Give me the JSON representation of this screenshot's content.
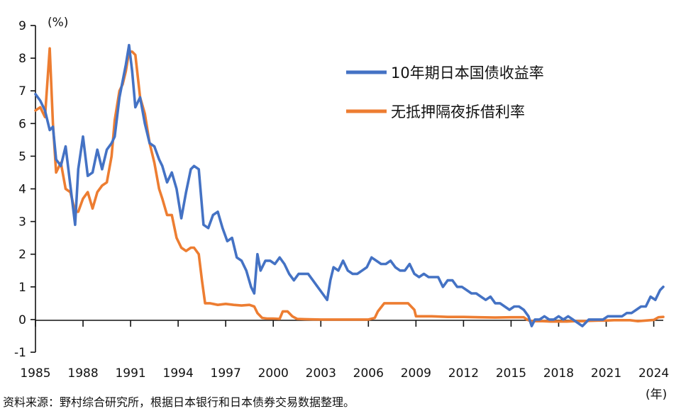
{
  "chart_data": {
    "type": "line",
    "y_unit": "(%)",
    "x_unit": "(年)",
    "xlim": [
      1985,
      2024.6
    ],
    "ylim": [
      -1,
      9
    ],
    "y_ticks": [
      "-1",
      "0",
      "1",
      "2",
      "3",
      "4",
      "5",
      "6",
      "7",
      "8",
      "9"
    ],
    "x_ticks": [
      "1985",
      "1988",
      "1991",
      "1994",
      "1997",
      "2000",
      "2003",
      "2006",
      "2009",
      "2012",
      "2015",
      "2018",
      "2021",
      "2024"
    ],
    "legend_position": "top-right",
    "grid": false,
    "series": [
      {
        "name": "10年期日本国债收益率",
        "color": "#4472c4",
        "x": [
          1985.0,
          1985.3,
          1985.6,
          1985.9,
          1986.1,
          1986.3,
          1986.6,
          1986.9,
          1987.2,
          1987.5,
          1987.7,
          1988.0,
          1988.3,
          1988.6,
          1988.9,
          1989.2,
          1989.5,
          1989.8,
          1990.0,
          1990.3,
          1990.5,
          1990.7,
          1990.9,
          1991.1,
          1991.3,
          1991.6,
          1991.9,
          1992.2,
          1992.5,
          1992.8,
          1993.0,
          1993.3,
          1993.6,
          1993.9,
          1994.2,
          1994.5,
          1994.8,
          1995.0,
          1995.3,
          1995.6,
          1995.9,
          1996.2,
          1996.5,
          1996.8,
          1997.1,
          1997.4,
          1997.7,
          1998.0,
          1998.3,
          1998.6,
          1998.8,
          1999.0,
          1999.2,
          1999.5,
          1999.8,
          2000.1,
          2000.4,
          2000.7,
          2001.0,
          2001.3,
          2001.6,
          2001.9,
          2002.2,
          2002.5,
          2002.8,
          2003.1,
          2003.4,
          2003.6,
          2003.8,
          2004.1,
          2004.4,
          2004.7,
          2005.0,
          2005.3,
          2005.6,
          2005.9,
          2006.2,
          2006.5,
          2006.8,
          2007.1,
          2007.4,
          2007.7,
          2008.0,
          2008.3,
          2008.6,
          2008.9,
          2009.2,
          2009.5,
          2009.8,
          2010.1,
          2010.4,
          2010.7,
          2011.0,
          2011.3,
          2011.6,
          2011.9,
          2012.2,
          2012.5,
          2012.8,
          2013.1,
          2013.4,
          2013.7,
          2014.0,
          2014.3,
          2014.6,
          2014.9,
          2015.2,
          2015.5,
          2015.8,
          2016.1,
          2016.3,
          2016.5,
          2016.8,
          2017.1,
          2017.4,
          2017.7,
          2018.0,
          2018.3,
          2018.6,
          2018.9,
          2019.2,
          2019.5,
          2019.7,
          2019.9,
          2020.2,
          2020.5,
          2020.8,
          2021.1,
          2021.4,
          2021.7,
          2022.0,
          2022.3,
          2022.6,
          2022.9,
          2023.2,
          2023.5,
          2023.8,
          2024.1,
          2024.4,
          2024.6
        ],
        "values": [
          6.9,
          6.7,
          6.4,
          5.8,
          5.9,
          4.9,
          4.7,
          5.3,
          4.1,
          2.9,
          4.6,
          5.6,
          4.4,
          4.5,
          5.2,
          4.6,
          5.2,
          5.4,
          5.6,
          6.8,
          7.3,
          7.8,
          8.4,
          7.6,
          6.5,
          6.8,
          6.0,
          5.4,
          5.3,
          4.9,
          4.7,
          4.2,
          4.5,
          4.0,
          3.1,
          3.9,
          4.6,
          4.7,
          4.6,
          2.9,
          2.8,
          3.2,
          3.3,
          2.8,
          2.4,
          2.5,
          1.9,
          1.8,
          1.5,
          1.0,
          0.8,
          2.0,
          1.5,
          1.8,
          1.8,
          1.7,
          1.9,
          1.7,
          1.4,
          1.2,
          1.4,
          1.4,
          1.4,
          1.2,
          1.0,
          0.8,
          0.6,
          1.2,
          1.6,
          1.5,
          1.8,
          1.5,
          1.4,
          1.4,
          1.5,
          1.6,
          1.9,
          1.8,
          1.7,
          1.7,
          1.8,
          1.6,
          1.5,
          1.5,
          1.7,
          1.4,
          1.3,
          1.4,
          1.3,
          1.3,
          1.3,
          1.0,
          1.2,
          1.2,
          1.0,
          1.0,
          0.9,
          0.8,
          0.8,
          0.7,
          0.6,
          0.7,
          0.5,
          0.5,
          0.4,
          0.3,
          0.4,
          0.4,
          0.3,
          0.1,
          -0.2,
          0.0,
          0.0,
          0.1,
          0.0,
          0.0,
          0.1,
          0.0,
          0.1,
          0.0,
          -0.1,
          -0.2,
          -0.1,
          0.0,
          0.0,
          0.0,
          0.0,
          0.1,
          0.1,
          0.1,
          0.1,
          0.2,
          0.2,
          0.3,
          0.4,
          0.4,
          0.7,
          0.6,
          0.9,
          1.0
        ]
      },
      {
        "name": "无抵押隔夜拆借利率",
        "color": "#ed7d31",
        "x": [
          1985.0,
          1985.3,
          1985.6,
          1985.9,
          1986.1,
          1986.3,
          1986.6,
          1986.9,
          1987.2,
          1987.5,
          1987.7,
          1988.0,
          1988.3,
          1988.6,
          1988.9,
          1989.2,
          1989.5,
          1989.8,
          1990.0,
          1990.3,
          1990.5,
          1990.7,
          1990.9,
          1991.1,
          1991.3,
          1991.6,
          1991.9,
          1992.2,
          1992.5,
          1992.8,
          1993.0,
          1993.3,
          1993.6,
          1993.9,
          1994.2,
          1994.5,
          1994.8,
          1995.0,
          1995.3,
          1995.5,
          1995.7,
          1996.0,
          1996.5,
          1997.0,
          1997.5,
          1998.0,
          1998.5,
          1998.8,
          1999.0,
          1999.3,
          1999.6,
          2000.0,
          2000.4,
          2000.6,
          2000.9,
          2001.2,
          2001.5,
          2002.0,
          2003.0,
          2004.0,
          2005.0,
          2006.0,
          2006.4,
          2006.6,
          2007.0,
          2007.3,
          2007.6,
          2008.0,
          2008.5,
          2008.9,
          2009.0,
          2009.5,
          2010.0,
          2011.0,
          2012.0,
          2013.0,
          2014.0,
          2015.0,
          2015.8,
          2016.0,
          2016.2,
          2016.5,
          2017.0,
          2017.5,
          2018.0,
          2018.5,
          2019.0,
          2019.5,
          2020.0,
          2020.5,
          2021.0,
          2021.5,
          2022.0,
          2022.5,
          2023.0,
          2023.5,
          2024.0,
          2024.3,
          2024.6
        ],
        "values": [
          6.4,
          6.5,
          6.2,
          8.3,
          6.0,
          4.5,
          4.8,
          4.0,
          3.9,
          3.3,
          3.3,
          3.7,
          3.9,
          3.4,
          3.9,
          4.1,
          4.2,
          5.0,
          6.1,
          7.0,
          7.2,
          7.6,
          8.2,
          8.2,
          8.1,
          6.8,
          6.3,
          5.4,
          4.8,
          4.0,
          3.7,
          3.2,
          3.2,
          2.5,
          2.2,
          2.1,
          2.2,
          2.2,
          2.0,
          1.2,
          0.5,
          0.5,
          0.45,
          0.48,
          0.45,
          0.43,
          0.45,
          0.4,
          0.2,
          0.05,
          0.03,
          0.03,
          0.02,
          0.25,
          0.25,
          0.1,
          0.02,
          0.01,
          0.0,
          0.0,
          0.0,
          0.0,
          0.05,
          0.25,
          0.5,
          0.5,
          0.5,
          0.5,
          0.5,
          0.3,
          0.1,
          0.1,
          0.1,
          0.08,
          0.08,
          0.07,
          0.06,
          0.07,
          0.07,
          0.0,
          -0.04,
          -0.05,
          -0.05,
          -0.06,
          -0.06,
          -0.06,
          -0.05,
          -0.05,
          -0.04,
          -0.03,
          -0.03,
          -0.02,
          -0.02,
          -0.02,
          -0.05,
          -0.03,
          -0.01,
          0.07,
          0.08
        ]
      }
    ]
  },
  "source": "资料来源：野村综合研究所，根据日本银行和日本债券交易数据整理。"
}
